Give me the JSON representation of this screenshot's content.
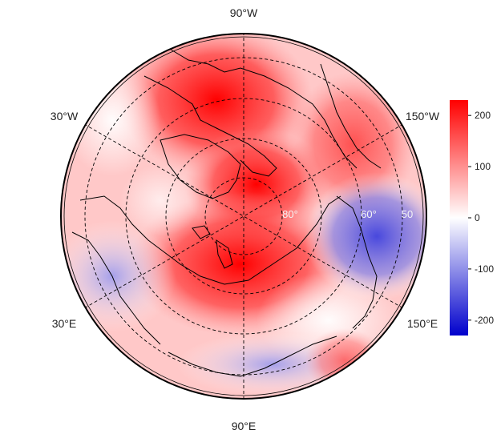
{
  "map": {
    "projection": "north-polar-stereographic",
    "longitude_labels": {
      "top": "90°W",
      "upper_left": "30°W",
      "upper_right": "150°W",
      "lower_left": "30°E",
      "lower_right": "150°E",
      "bottom": "90°E"
    },
    "latitude_labels": [
      "80°",
      "60°",
      "50"
    ],
    "gridlines": "dashed",
    "coastlines": true
  },
  "colorbar": {
    "ticks": [
      "200",
      "100",
      "0",
      "-100",
      "-200"
    ],
    "range": [
      -230,
      230
    ],
    "colors": {
      "low": "#0000cc",
      "mid": "#ffffff",
      "high": "#ff0000"
    }
  },
  "field": {
    "description_colors": {
      "positive": "#ff2020",
      "negative": "#5050dd"
    }
  }
}
